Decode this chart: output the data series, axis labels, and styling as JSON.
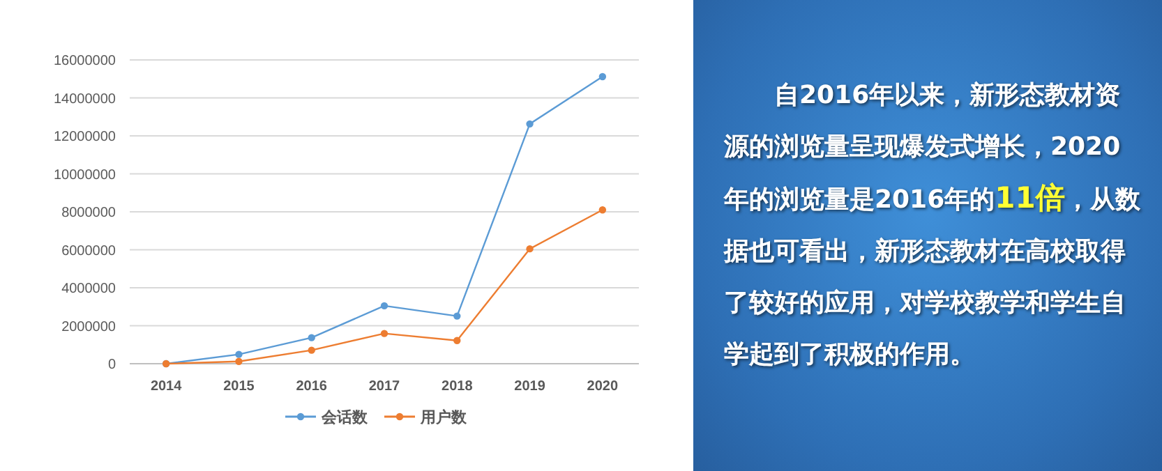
{
  "chart_data": [
    {
      "type": "line",
      "categories": [
        "2014",
        "2015",
        "2016",
        "2017",
        "2018",
        "2019",
        "2020"
      ],
      "series": [
        {
          "name": "会话数",
          "color": "#5b9bd5",
          "values": [
            0,
            490000,
            1370000,
            3050000,
            2510000,
            12630000,
            15120000
          ]
        },
        {
          "name": "用户数",
          "color": "#ed7d31",
          "values": [
            0,
            120000,
            710000,
            1590000,
            1220000,
            6050000,
            8100000
          ]
        }
      ],
      "ylim": [
        0,
        16000000
      ],
      "yticks": [
        0,
        2000000,
        4000000,
        6000000,
        8000000,
        10000000,
        12000000,
        14000000,
        16000000
      ],
      "grid": "y",
      "legend": "bottom",
      "marker": "circle",
      "line_style": "solid"
    },
    {
      "type": "other",
      "annotations": [
        "自2016年以来，新形态教材资源的浏览量呈现爆发式增长，2020年的浏览量是2016年的",
        "11倍",
        "，从数据也可看出，新形态教材在高校取得了较好的应用，对学校教学和学生自学起到了积极的作用。"
      ]
    }
  ]
}
